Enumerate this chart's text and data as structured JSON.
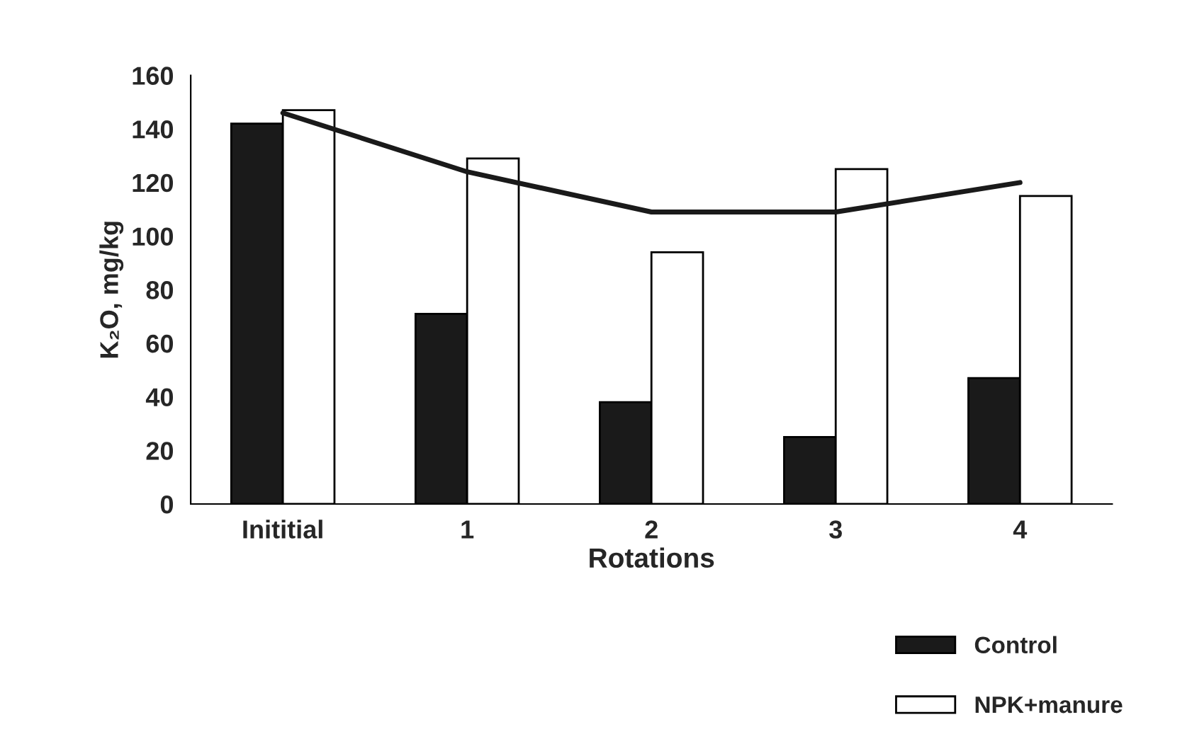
{
  "chart_data": {
    "type": "bar",
    "xlabel": "Rotations",
    "ylabel": "K₂O, mg/kg",
    "categories": [
      "Inititial",
      "1",
      "2",
      "3",
      "4"
    ],
    "series": [
      {
        "name": "Control",
        "color": "#1a1a1a",
        "values": [
          142,
          71,
          38,
          25,
          47
        ]
      },
      {
        "name": "NPK+manure",
        "color": "#ffffff",
        "values": [
          147,
          129,
          94,
          125,
          115
        ]
      },
      {
        "type": "line",
        "color": "#1a1a1a",
        "values": [
          146,
          124,
          109,
          109,
          120
        ]
      }
    ],
    "ylim": [
      0,
      160
    ],
    "yticks": [
      0,
      20,
      40,
      60,
      80,
      100,
      120,
      140,
      160
    ],
    "grid": false,
    "legend": "bottom right",
    "marker": "none",
    "line_style": "solid"
  }
}
